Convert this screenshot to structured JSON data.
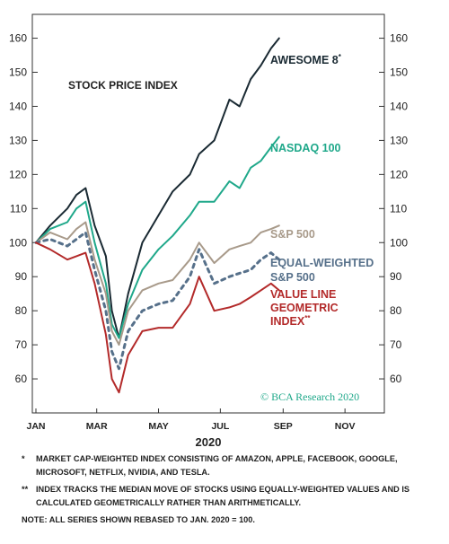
{
  "chart_data": {
    "type": "line",
    "subtitle": "STOCK PRICE INDEX",
    "xlabel": "2020",
    "x_ticks": [
      "JAN",
      "MAR",
      "MAY",
      "JUL",
      "SEP",
      "NOV"
    ],
    "x_range": [
      "2020-01-01",
      "2020-12-01"
    ],
    "y_ticks": [
      60,
      70,
      80,
      90,
      100,
      110,
      120,
      130,
      140,
      150,
      160
    ],
    "ylim": [
      50,
      167
    ],
    "y_axes": "left and right",
    "grid": false,
    "legend": "labels at line ends",
    "series": [
      {
        "name": "AWESOME 8",
        "name_mark": "*",
        "color": "#1a2a33",
        "style": "solid",
        "x": [
          "2020-01-01",
          "2020-01-15",
          "2020-02-01",
          "2020-02-10",
          "2020-02-19",
          "2020-02-28",
          "2020-03-10",
          "2020-03-16",
          "2020-03-23",
          "2020-04-01",
          "2020-04-15",
          "2020-05-01",
          "2020-05-15",
          "2020-06-01",
          "2020-06-10",
          "2020-06-25",
          "2020-07-10",
          "2020-07-20",
          "2020-07-31",
          "2020-08-10",
          "2020-08-20",
          "2020-08-28"
        ],
        "y": [
          100,
          105,
          110,
          114,
          116,
          105,
          96,
          80,
          72,
          85,
          100,
          108,
          115,
          120,
          126,
          130,
          142,
          140,
          148,
          152,
          157,
          160
        ]
      },
      {
        "name": "NASDAQ 100",
        "color": "#1fa88a",
        "style": "solid",
        "x": [
          "2020-01-01",
          "2020-01-15",
          "2020-02-01",
          "2020-02-10",
          "2020-02-19",
          "2020-02-28",
          "2020-03-10",
          "2020-03-16",
          "2020-03-23",
          "2020-04-01",
          "2020-04-15",
          "2020-05-01",
          "2020-05-15",
          "2020-06-01",
          "2020-06-10",
          "2020-06-25",
          "2020-07-10",
          "2020-07-20",
          "2020-07-31",
          "2020-08-10",
          "2020-08-20",
          "2020-08-28"
        ],
        "y": [
          100,
          104,
          106,
          110,
          112,
          100,
          88,
          76,
          72,
          82,
          92,
          98,
          102,
          108,
          112,
          112,
          118,
          116,
          122,
          124,
          128,
          131
        ]
      },
      {
        "name": "S&P 500",
        "color": "#a89a8a",
        "style": "solid",
        "x": [
          "2020-01-01",
          "2020-01-15",
          "2020-02-01",
          "2020-02-10",
          "2020-02-19",
          "2020-02-28",
          "2020-03-10",
          "2020-03-16",
          "2020-03-23",
          "2020-04-01",
          "2020-04-15",
          "2020-05-01",
          "2020-05-15",
          "2020-06-01",
          "2020-06-10",
          "2020-06-25",
          "2020-07-10",
          "2020-07-20",
          "2020-07-31",
          "2020-08-10",
          "2020-08-20",
          "2020-08-28"
        ],
        "y": [
          100,
          103,
          101,
          104,
          106,
          95,
          85,
          74,
          70,
          80,
          86,
          88,
          89,
          95,
          100,
          94,
          98,
          99,
          100,
          103,
          104,
          105
        ]
      },
      {
        "name": "EQUAL-WEIGHTED S&P 500",
        "color": "#56708a",
        "style": "dashed",
        "x": [
          "2020-01-01",
          "2020-01-15",
          "2020-02-01",
          "2020-02-10",
          "2020-02-19",
          "2020-02-28",
          "2020-03-10",
          "2020-03-16",
          "2020-03-23",
          "2020-04-01",
          "2020-04-15",
          "2020-05-01",
          "2020-05-15",
          "2020-06-01",
          "2020-06-10",
          "2020-06-25",
          "2020-07-10",
          "2020-07-20",
          "2020-07-31",
          "2020-08-10",
          "2020-08-20",
          "2020-08-28"
        ],
        "y": [
          100,
          101,
          99,
          101,
          103,
          92,
          80,
          68,
          63,
          74,
          80,
          82,
          83,
          90,
          98,
          88,
          90,
          91,
          92,
          95,
          97,
          95
        ]
      },
      {
        "name": "VALUE LINE GEOMETRIC INDEX",
        "name_mark": "**",
        "color": "#b32a2a",
        "style": "solid",
        "x": [
          "2020-01-01",
          "2020-01-15",
          "2020-02-01",
          "2020-02-10",
          "2020-02-19",
          "2020-02-28",
          "2020-03-10",
          "2020-03-16",
          "2020-03-23",
          "2020-04-01",
          "2020-04-15",
          "2020-05-01",
          "2020-05-15",
          "2020-06-01",
          "2020-06-10",
          "2020-06-25",
          "2020-07-10",
          "2020-07-20",
          "2020-07-31",
          "2020-08-10",
          "2020-08-20",
          "2020-08-28"
        ],
        "y": [
          100,
          98,
          95,
          96,
          97,
          88,
          73,
          60,
          56,
          67,
          74,
          75,
          75,
          82,
          90,
          80,
          81,
          82,
          84,
          86,
          88,
          86
        ]
      }
    ]
  },
  "credit": "© BCA Research 2020",
  "footnotes": [
    {
      "marker": "*",
      "text": "MARKET CAP-WEIGHTED INDEX CONSISTING OF AMAZON, APPLE, FACEBOOK, GOOGLE, MICROSOFT, NETFLIX, NVIDIA, AND TESLA."
    },
    {
      "marker": "**",
      "text": "INDEX TRACKS THE MEDIAN MOVE OF STOCKS USING EQUALLY-WEIGHTED VALUES AND IS CALCULATED GEOMETRICALLY RATHER THAN ARITHMETICALLY."
    }
  ],
  "note": "NOTE: ALL SERIES SHOWN REBASED TO JAN. 2020 = 100."
}
